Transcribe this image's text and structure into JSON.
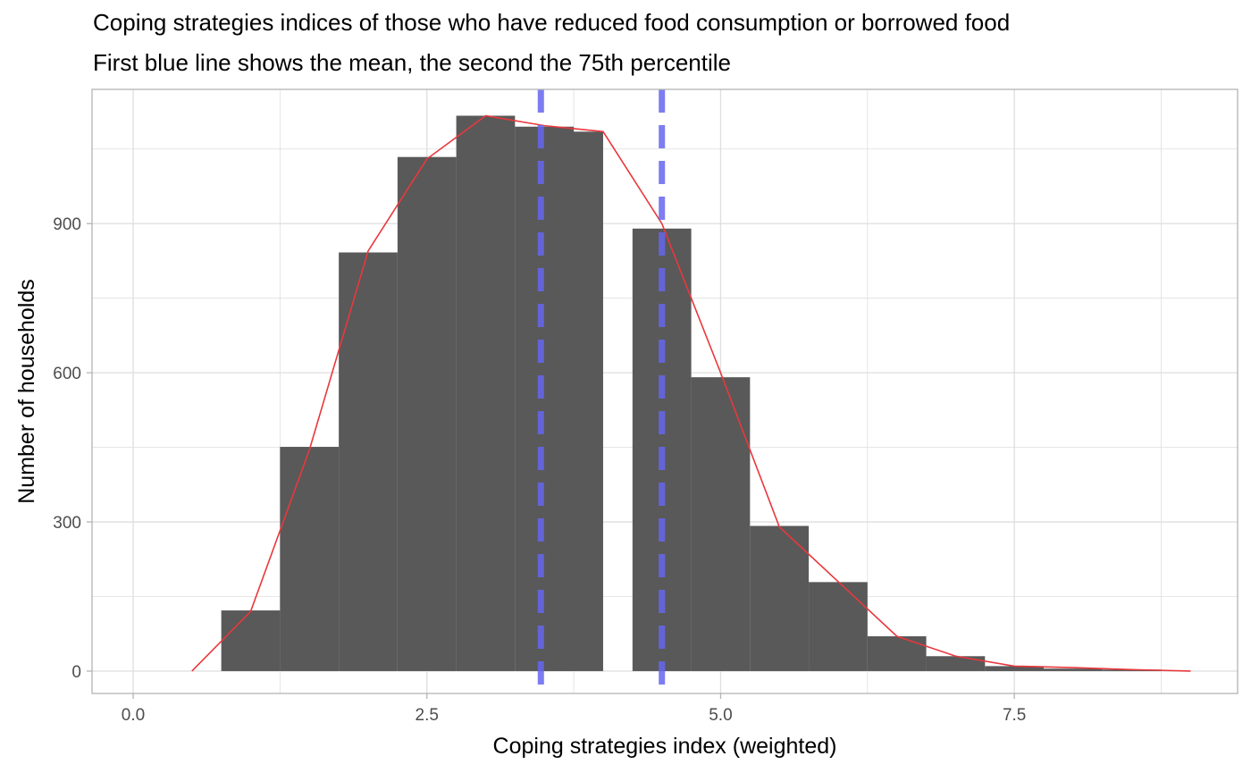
{
  "chart_data": {
    "type": "bar",
    "title": "Coping strategies indices of those who have reduced food consumption or borrowed food",
    "subtitle": "First blue line shows the mean, the second the 75th percentile",
    "xlabel": "Coping strategies index (weighted)",
    "ylabel": "Number of households",
    "xlim": [
      -0.35,
      9.4
    ],
    "ylim": [
      -45,
      1170
    ],
    "x_ticks": [
      0,
      2.5,
      5,
      7.5
    ],
    "x_tick_labels": [
      "0.0",
      "2.5",
      "5.0",
      "7.5"
    ],
    "y_ticks": [
      0,
      300,
      600,
      900
    ],
    "y_tick_labels": [
      "0",
      "300",
      "600",
      "900"
    ],
    "grid": true,
    "bars": [
      {
        "x": 1.0,
        "y": 122
      },
      {
        "x": 1.5,
        "y": 451
      },
      {
        "x": 2.0,
        "y": 842
      },
      {
        "x": 2.5,
        "y": 1034
      },
      {
        "x": 3.0,
        "y": 1117
      },
      {
        "x": 3.5,
        "y": 1095
      },
      {
        "x": 3.75,
        "y": 1085
      },
      {
        "x": 4.5,
        "y": 890
      },
      {
        "x": 5.0,
        "y": 591
      },
      {
        "x": 5.5,
        "y": 292
      },
      {
        "x": 6.0,
        "y": 179
      },
      {
        "x": 6.5,
        "y": 70
      },
      {
        "x": 7.0,
        "y": 30
      },
      {
        "x": 7.5,
        "y": 10
      },
      {
        "x": 8.0,
        "y": 5
      },
      {
        "x": 8.5,
        "y": 3
      }
    ],
    "density_line": {
      "x": [
        0.5,
        1.0,
        1.5,
        2.0,
        2.5,
        3.0,
        3.5,
        4.0,
        4.5,
        5.0,
        5.5,
        6.0,
        6.5,
        7.0,
        7.5,
        8.0,
        8.5,
        9.0
      ],
      "y": [
        0,
        120,
        445,
        845,
        1030,
        1117,
        1097,
        1085,
        900,
        600,
        290,
        180,
        70,
        30,
        10,
        7,
        3,
        0
      ]
    },
    "vlines": [
      {
        "x": 3.47
      },
      {
        "x": 4.5
      }
    ],
    "colors": {
      "bar": "#595959",
      "line": "#e8383d",
      "vline": "#6666ee",
      "grid": "#dedede",
      "panel_border": "#b3b3b3"
    }
  }
}
